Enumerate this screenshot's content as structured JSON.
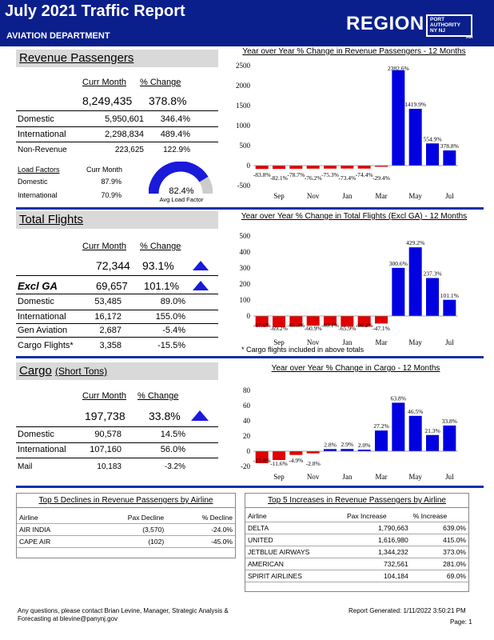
{
  "header": {
    "title": "July 2021 Traffic Report",
    "department": "AVIATION DEPARTMENT",
    "region": "REGION",
    "logo_line1": "PORT",
    "logo_line2": "AUTHORITY",
    "logo_line3": "NY NJ",
    "logo_sub": "AIR"
  },
  "revenue": {
    "heading": "Revenue Passengers",
    "col_curr": "Curr Month",
    "col_change": "% Change",
    "total": "8,249,435",
    "total_change": "378.8%",
    "rows": [
      {
        "label": "Domestic",
        "value": "5,950,601",
        "change": "346.4%"
      },
      {
        "label": "International",
        "value": "2,298,834",
        "change": "489.4%"
      },
      {
        "label": "Non-Revenue",
        "value": "223,625",
        "change": "122.9%"
      }
    ],
    "lf_label": "Load Factors",
    "lf_col": "Curr Month",
    "lf_rows": [
      {
        "label": "Domestic",
        "value": "87.9%"
      },
      {
        "label": "International",
        "value": "70.9%"
      }
    ],
    "gauge_value": "82.4%",
    "gauge_label": "Avg Load Factor",
    "gauge_fraction": 0.824,
    "chart_title": "Year over Year % Change in Revenue Passengers - 12 Months"
  },
  "flights": {
    "heading": "Total Flights",
    "col_curr": "Curr Month",
    "col_change": "% Change",
    "total": "72,344",
    "total_change": "93.1%",
    "excl_label": "Excl GA",
    "excl_value": "69,657",
    "excl_change": "101.1%",
    "rows": [
      {
        "label": "Domestic",
        "value": "53,485",
        "change": "89.0%"
      },
      {
        "label": "International",
        "value": "16,172",
        "change": "155.0%"
      },
      {
        "label": "Gen Aviation",
        "value": "2,687",
        "change": "-5.4%"
      },
      {
        "label": "Cargo Flights*",
        "value": "3,358",
        "change": "-15.5%"
      }
    ],
    "footnote": "* Cargo flights included in above totals",
    "chart_title": "Year over Year % Change in Total Flights (Excl GA) - 12 Months"
  },
  "cargo": {
    "heading": "Cargo",
    "heading_unit": "(Short Tons)",
    "col_curr": "Curr Month",
    "col_change": "% Change",
    "total": "197,738",
    "total_change": "33.8%",
    "rows": [
      {
        "label": "Domestic",
        "value": "90,578",
        "change": "14.5%"
      },
      {
        "label": "International",
        "value": "107,160",
        "change": "56.0%"
      },
      {
        "label": "Mail",
        "value": "10,183",
        "change": "-3.2%"
      }
    ],
    "chart_title": "Year over Year % Change in Cargo - 12 Months"
  },
  "declines": {
    "title": "Top 5 Declines in Revenue Passengers by Airline",
    "headers": [
      "Airline",
      "Pax Decline",
      "% Decline"
    ],
    "rows": [
      [
        "AIR INDIA",
        "(3,570)",
        "-24.0%"
      ],
      [
        "CAPE AIR",
        "(102)",
        "-45.0%"
      ]
    ]
  },
  "increases": {
    "title": "Top 5 Increases in Revenue Passengers by Airline",
    "headers": [
      "Airline",
      "Pax Increase",
      "% Increase"
    ],
    "rows": [
      [
        "DELTA",
        "1,790,663",
        "639.0%"
      ],
      [
        "UNITED",
        "1,616,980",
        "415.0%"
      ],
      [
        "JETBLUE AIRWAYS",
        "1,344,232",
        "373.0%"
      ],
      [
        "AMERICAN",
        "732,561",
        "281.0%"
      ],
      [
        "SPIRIT AIRLINES",
        "104,184",
        "69.0%"
      ]
    ]
  },
  "footer": {
    "contact1": "Any questions, please contact Brian Levine, Manager, Strategic Analysis &",
    "contact2": "Forecasting at blevine@panynj.gov",
    "generated": "Report Generated:  1/11/2022 3:50:21 PM",
    "page": "Page: 1"
  },
  "colors": {
    "header": "#0b1f8c",
    "positive": "#0000e0",
    "negative": "#e00000"
  },
  "chart_data": [
    {
      "type": "bar",
      "title": "Year over Year % Change in Revenue Passengers - 12 Months",
      "categories": [
        "Aug",
        "Sep",
        "Oct",
        "Nov",
        "Dec",
        "Jan",
        "Feb",
        "Mar",
        "Apr",
        "May",
        "Jun",
        "Jul"
      ],
      "tick_labels": [
        "Sep",
        "Nov",
        "Jan",
        "Mar",
        "May",
        "Jul"
      ],
      "values": [
        -83.8,
        -82.1,
        -78.7,
        -76.2,
        -75.3,
        -73.4,
        -74.4,
        -29.4,
        2382.6,
        1419.9,
        554.9,
        378.8
      ],
      "labels": [
        "-83.8%",
        "-82.1%",
        "-78.7%",
        "-76.2%",
        "-75.3%",
        "-73.4%",
        "-74.4%",
        "-29.4%",
        "2382.6%",
        "1419.9%",
        "554.9%",
        "378.8%"
      ],
      "ylim": [
        -500,
        2500
      ],
      "yticks": [
        -500,
        0,
        500,
        1000,
        1500,
        2000,
        2500
      ]
    },
    {
      "type": "bar",
      "title": "Year over Year % Change in Total Flights (Excl GA) - 12 Months",
      "categories": [
        "Aug",
        "Sep",
        "Oct",
        "Nov",
        "Dec",
        "Jan",
        "Feb",
        "Mar",
        "Apr",
        "May",
        "Jun",
        "Jul"
      ],
      "tick_labels": [
        "Sep",
        "Nov",
        "Jan",
        "Mar",
        "May",
        "Jul"
      ],
      "values": [
        -67.6,
        -69.2,
        -65.3,
        -60.9,
        -60.1,
        -65.9,
        -66.2,
        -47.1,
        300.6,
        429.2,
        237.3,
        101.1
      ],
      "labels": [
        "-67.6%",
        "-69.2%",
        "-65.3%",
        "-60.9%",
        "-60.1%",
        "-65.9%",
        "-66.2%",
        "-47.1%",
        "300.6%",
        "429.2%",
        "237.3%",
        "101.1%"
      ],
      "ylim": [
        -100,
        500
      ],
      "yticks": [
        0,
        100,
        200,
        300,
        400,
        500
      ]
    },
    {
      "type": "bar",
      "title": "Year over Year % Change in Cargo - 12 Months",
      "categories": [
        "Aug",
        "Sep",
        "Oct",
        "Nov",
        "Dec",
        "Jan",
        "Feb",
        "Mar",
        "Apr",
        "May",
        "Jun",
        "Jul"
      ],
      "tick_labels": [
        "Sep",
        "Nov",
        "Jan",
        "Mar",
        "May",
        "Jul"
      ],
      "values": [
        -15.8,
        -11.6,
        -4.9,
        -2.8,
        2.8,
        2.9,
        2.0,
        27.2,
        63.8,
        46.5,
        21.3,
        33.8
      ],
      "labels": [
        "-15.8%",
        "-11.6%",
        "-4.9%",
        "-2.8%",
        "2.8%",
        "2.9%",
        "2.0%",
        "27.2%",
        "63.8%",
        "46.5%",
        "21.3%",
        "33.8%"
      ],
      "ylim": [
        -20,
        80
      ],
      "yticks": [
        -20,
        0,
        20,
        40,
        60,
        80
      ]
    }
  ]
}
